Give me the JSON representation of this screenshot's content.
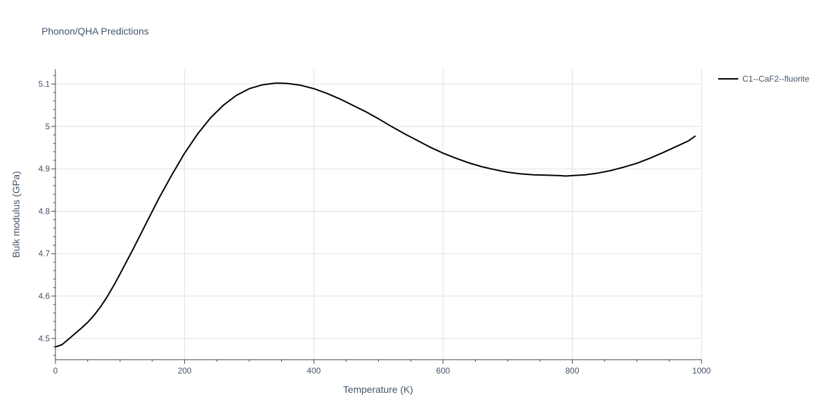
{
  "chart_data": {
    "type": "line",
    "title": "Phonon/QHA Predictions",
    "xlabel": "Temperature (K)",
    "ylabel": "Bulk modulus (GPa)",
    "xlim": [
      0,
      1000
    ],
    "ylim": [
      4.45,
      5.135
    ],
    "x_ticks": [
      0,
      200,
      400,
      600,
      800,
      1000
    ],
    "x_tick_labels": [
      "0",
      "200",
      "400",
      "600",
      "800",
      "1000"
    ],
    "y_ticks": [
      4.5,
      4.6,
      4.7,
      4.8,
      4.9,
      5.0,
      5.1
    ],
    "y_tick_labels": [
      "4.5",
      "4.6",
      "4.7",
      "4.8",
      "4.9",
      "5",
      "5.1"
    ],
    "grid": true,
    "legend_position": "top-right",
    "series": [
      {
        "name": "C1--CaF2--fluorite",
        "color": "#000000",
        "x": [
          0,
          10,
          20,
          30,
          40,
          50,
          60,
          70,
          80,
          90,
          100,
          120,
          140,
          160,
          180,
          200,
          220,
          240,
          260,
          280,
          300,
          320,
          340,
          350,
          360,
          380,
          400,
          420,
          440,
          460,
          480,
          500,
          520,
          540,
          560,
          580,
          600,
          620,
          640,
          660,
          680,
          700,
          720,
          740,
          760,
          780,
          790,
          800,
          820,
          840,
          860,
          880,
          900,
          920,
          940,
          960,
          980,
          990
        ],
        "y": [
          4.48,
          4.485,
          4.498,
          4.511,
          4.524,
          4.538,
          4.555,
          4.575,
          4.598,
          4.624,
          4.652,
          4.71,
          4.77,
          4.83,
          4.885,
          4.937,
          4.982,
          5.02,
          5.05,
          5.073,
          5.089,
          5.098,
          5.102,
          5.102,
          5.101,
          5.097,
          5.089,
          5.078,
          5.065,
          5.05,
          5.035,
          5.018,
          5.0,
          4.983,
          4.967,
          4.951,
          4.937,
          4.925,
          4.914,
          4.905,
          4.898,
          4.892,
          4.888,
          4.886,
          4.885,
          4.884,
          4.883,
          4.884,
          4.886,
          4.89,
          4.896,
          4.904,
          4.913,
          4.925,
          4.938,
          4.952,
          4.966,
          4.977
        ]
      }
    ]
  }
}
